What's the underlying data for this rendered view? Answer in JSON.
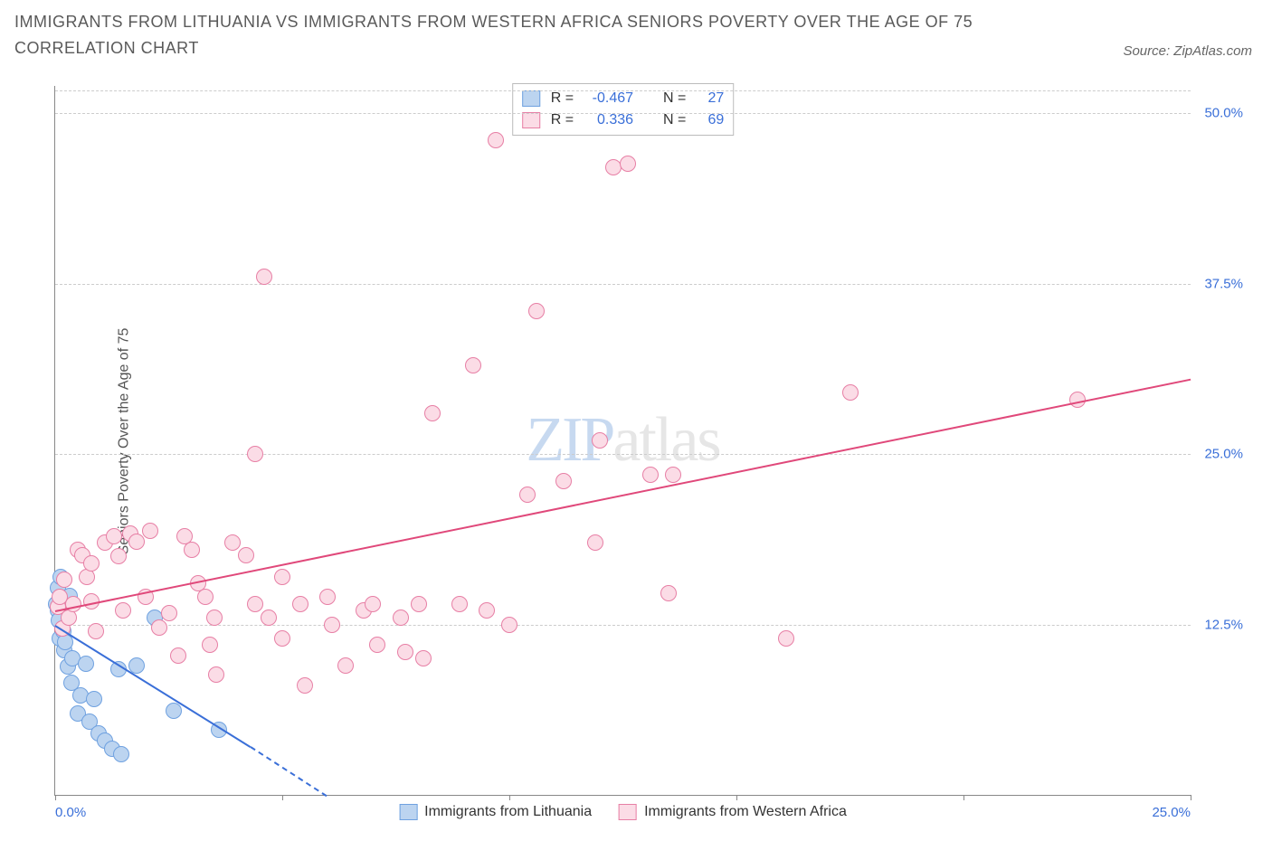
{
  "title": "IMMIGRANTS FROM LITHUANIA VS IMMIGRANTS FROM WESTERN AFRICA SENIORS POVERTY OVER THE AGE OF 75 CORRELATION CHART",
  "source_label": "Source: ZipAtlas.com",
  "y_axis_label": "Seniors Poverty Over the Age of 75",
  "watermark": {
    "zip": "ZIP",
    "atlas": "atlas"
  },
  "axes": {
    "x_min": 0.0,
    "x_max": 25.0,
    "y_min": 0.0,
    "y_max": 52.0,
    "y_ticks": [
      12.5,
      25.0,
      37.5,
      50.0
    ],
    "y_tick_labels": [
      "12.5%",
      "25.0%",
      "37.5%",
      "50.0%"
    ],
    "x_tick_positions": [
      0.0,
      5.0,
      10.0,
      15.0,
      20.0,
      25.0
    ],
    "x_min_label": "0.0%",
    "x_max_label": "25.0%",
    "grid_color": "#cccccc",
    "tick_label_color": "#3a6fd8"
  },
  "series": [
    {
      "name": "Immigrants from Lithuania",
      "marker_fill": "#bcd4f0",
      "marker_stroke": "#6fa1e0",
      "marker_radius": 9,
      "line_color": "#3a6fd8",
      "stats": {
        "R": "-0.467",
        "N": "27"
      },
      "trend": {
        "x1": 0.0,
        "y1": 12.5,
        "x2": 4.3,
        "y2": 3.6,
        "extend_x2": 8.3,
        "extend_y2": -5.0
      },
      "points": [
        [
          0.02,
          14.0
        ],
        [
          0.05,
          13.5
        ],
        [
          0.06,
          15.2
        ],
        [
          0.07,
          12.8
        ],
        [
          0.1,
          11.5
        ],
        [
          0.12,
          16.0
        ],
        [
          0.18,
          12.0
        ],
        [
          0.2,
          10.6
        ],
        [
          0.22,
          11.2
        ],
        [
          0.28,
          9.4
        ],
        [
          0.32,
          14.6
        ],
        [
          0.35,
          8.2
        ],
        [
          0.38,
          10.0
        ],
        [
          0.5,
          6.0
        ],
        [
          0.55,
          7.3
        ],
        [
          0.68,
          9.6
        ],
        [
          0.75,
          5.4
        ],
        [
          0.85,
          7.0
        ],
        [
          0.95,
          4.5
        ],
        [
          1.1,
          4.0
        ],
        [
          1.25,
          3.4
        ],
        [
          1.4,
          9.2
        ],
        [
          1.45,
          3.0
        ],
        [
          1.8,
          9.5
        ],
        [
          2.2,
          13.0
        ],
        [
          2.6,
          6.2
        ],
        [
          3.6,
          4.8
        ]
      ]
    },
    {
      "name": "Immigrants from Western Africa",
      "marker_fill": "#fbdce6",
      "marker_stroke": "#e77fa5",
      "marker_radius": 9,
      "line_color": "#e0487a",
      "stats": {
        "R": "0.336",
        "N": "69"
      },
      "trend": {
        "x1": 0.0,
        "y1": 13.5,
        "x2": 25.0,
        "y2": 30.5
      },
      "points": [
        [
          0.05,
          13.8
        ],
        [
          0.1,
          14.5
        ],
        [
          0.15,
          12.2
        ],
        [
          0.2,
          15.8
        ],
        [
          0.3,
          13.0
        ],
        [
          0.4,
          14.0
        ],
        [
          0.5,
          18.0
        ],
        [
          0.6,
          17.6
        ],
        [
          0.7,
          16.0
        ],
        [
          0.8,
          17.0
        ],
        [
          0.8,
          14.2
        ],
        [
          0.9,
          12.0
        ],
        [
          1.1,
          18.5
        ],
        [
          1.3,
          19.0
        ],
        [
          1.4,
          17.5
        ],
        [
          1.5,
          13.5
        ],
        [
          1.65,
          19.2
        ],
        [
          1.8,
          18.6
        ],
        [
          2.0,
          14.5
        ],
        [
          2.1,
          19.4
        ],
        [
          2.3,
          12.3
        ],
        [
          2.5,
          13.3
        ],
        [
          2.7,
          10.2
        ],
        [
          2.85,
          19.0
        ],
        [
          3.0,
          18.0
        ],
        [
          3.15,
          15.5
        ],
        [
          3.3,
          14.5
        ],
        [
          3.4,
          11.0
        ],
        [
          3.5,
          13.0
        ],
        [
          3.55,
          8.8
        ],
        [
          3.9,
          18.5
        ],
        [
          4.2,
          17.6
        ],
        [
          4.4,
          14.0
        ],
        [
          4.4,
          25.0
        ],
        [
          4.6,
          38.0
        ],
        [
          4.7,
          13.0
        ],
        [
          5.0,
          16.0
        ],
        [
          5.0,
          11.5
        ],
        [
          5.4,
          14.0
        ],
        [
          5.5,
          8.0
        ],
        [
          6.0,
          14.5
        ],
        [
          6.1,
          12.5
        ],
        [
          6.4,
          9.5
        ],
        [
          6.8,
          13.5
        ],
        [
          7.0,
          14.0
        ],
        [
          7.1,
          11.0
        ],
        [
          7.6,
          13.0
        ],
        [
          7.7,
          10.5
        ],
        [
          8.0,
          14.0
        ],
        [
          8.1,
          10.0
        ],
        [
          8.3,
          28.0
        ],
        [
          8.9,
          14.0
        ],
        [
          9.2,
          31.5
        ],
        [
          9.5,
          13.5
        ],
        [
          9.7,
          48.0
        ],
        [
          10.0,
          12.5
        ],
        [
          10.4,
          22.0
        ],
        [
          10.6,
          35.5
        ],
        [
          11.2,
          23.0
        ],
        [
          11.9,
          18.5
        ],
        [
          12.0,
          26.0
        ],
        [
          12.3,
          46.0
        ],
        [
          12.6,
          46.3
        ],
        [
          13.1,
          23.5
        ],
        [
          13.5,
          14.8
        ],
        [
          13.6,
          23.5
        ],
        [
          16.1,
          11.5
        ],
        [
          17.5,
          29.5
        ],
        [
          22.5,
          29.0
        ]
      ]
    }
  ],
  "legend_bottom": [
    {
      "label": "Immigrants from Lithuania",
      "fill": "#bcd4f0",
      "stroke": "#6fa1e0"
    },
    {
      "label": "Immigrants from Western Africa",
      "fill": "#fbdce6",
      "stroke": "#e77fa5"
    }
  ],
  "stats_box_labels": {
    "R": "R =",
    "N": "N ="
  }
}
